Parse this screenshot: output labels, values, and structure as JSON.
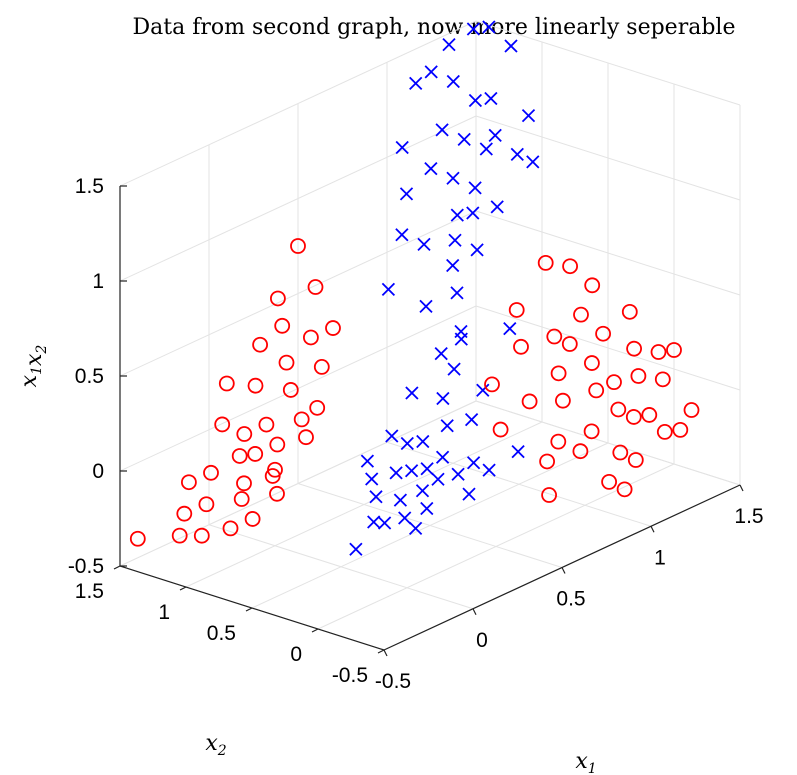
{
  "chart_data": {
    "type": "scatter",
    "title": "Data from second graph, now more linearly seperable",
    "xlabel": {
      "base": "x",
      "sub": "1"
    },
    "ylabel": {
      "base": "x",
      "sub": "2"
    },
    "zlabel": {
      "base": "x",
      "sub": "1",
      "base2": "x",
      "sub2": "2"
    },
    "xlim": [
      -0.5,
      1.5
    ],
    "ylim": [
      -0.5,
      1.5
    ],
    "zlim": [
      -0.5,
      1.5
    ],
    "x_ticks": [
      "-0.5",
      "0",
      "0.5",
      "1",
      "1.5"
    ],
    "y_ticks": [
      "-0.5",
      "0",
      "0.5",
      "1",
      "1.5"
    ],
    "z_ticks": [
      "-0.5",
      "0",
      "0.5",
      "1",
      "1.5"
    ],
    "grid": true,
    "series": [
      {
        "marker": "x",
        "color": "#0000ff",
        "points": [
          [
            1.05,
            0.9,
            0.95
          ],
          [
            1.2,
            0.95,
            1.15
          ],
          [
            0.95,
            1.1,
            1.05
          ],
          [
            1.15,
            1.2,
            1.4
          ],
          [
            0.9,
            0.85,
            0.75
          ],
          [
            1.25,
            1.05,
            1.3
          ],
          [
            1.1,
            0.8,
            0.85
          ],
          [
            0.85,
            1.15,
            0.95
          ],
          [
            1.3,
            1.25,
            1.6
          ],
          [
            1.0,
            1.0,
            1.0
          ],
          [
            0.8,
            0.95,
            0.75
          ],
          [
            1.2,
            1.1,
            1.3
          ],
          [
            0.95,
            0.75,
            0.7
          ],
          [
            1.1,
            1.3,
            1.45
          ],
          [
            1.35,
            0.9,
            1.2
          ],
          [
            0.9,
            1.25,
            1.15
          ],
          [
            1.05,
            1.15,
            1.2
          ],
          [
            1.25,
            0.85,
            1.05
          ],
          [
            0.75,
            1.05,
            0.8
          ],
          [
            1.15,
            0.95,
            1.1
          ],
          [
            1.4,
            1.1,
            1.5
          ],
          [
            1.0,
            0.85,
            0.85
          ],
          [
            0.85,
            0.8,
            0.65
          ],
          [
            1.3,
            0.8,
            1.0
          ],
          [
            0.6,
            0.95,
            0.6
          ],
          [
            1.1,
            1.05,
            1.15
          ],
          [
            0.95,
            0.9,
            0.85
          ],
          [
            1.2,
            1.3,
            1.55
          ],
          [
            0.8,
            0.7,
            0.55
          ],
          [
            1.35,
            1.2,
            1.6
          ],
          [
            0.7,
            0.8,
            0.5
          ],
          [
            1.05,
            1.35,
            1.4
          ],
          [
            0.6,
            0.55,
            0.35
          ],
          [
            0.75,
            0.6,
            0.35
          ],
          [
            0.0,
            0.05,
            -0.05
          ],
          [
            0.1,
            -0.1,
            0.05
          ],
          [
            -0.1,
            0.1,
            0.0
          ],
          [
            0.05,
            0.15,
            0.05
          ],
          [
            0.2,
            0.0,
            0.1
          ],
          [
            -0.05,
            -0.05,
            -0.1
          ],
          [
            0.15,
            0.2,
            0.15
          ],
          [
            0.25,
            -0.05,
            0.0
          ],
          [
            0.0,
            -0.15,
            -0.05
          ],
          [
            0.3,
            0.1,
            0.2
          ],
          [
            -0.15,
            0.05,
            -0.1
          ],
          [
            0.1,
            0.25,
            0.2
          ],
          [
            0.35,
            0.2,
            0.3
          ],
          [
            0.2,
            -0.2,
            -0.05
          ],
          [
            -0.2,
            -0.1,
            -0.05
          ],
          [
            0.05,
            -0.05,
            0.0
          ],
          [
            0.4,
            0.05,
            0.2
          ],
          [
            0.15,
            0.05,
            0.05
          ],
          [
            -0.1,
            -0.2,
            -0.1
          ],
          [
            0.3,
            -0.1,
            0.05
          ],
          [
            0.45,
            0.25,
            0.4
          ],
          [
            0.1,
            0.1,
            0.05
          ],
          [
            0.25,
            0.3,
            0.35
          ],
          [
            -0.05,
            0.2,
            0.05
          ],
          [
            0.5,
            0.1,
            0.3
          ],
          [
            0.2,
            0.15,
            0.15
          ],
          [
            0.0,
            0.3,
            0.1
          ],
          [
            0.35,
            -0.15,
            0.0
          ],
          [
            0.6,
            0.4,
            0.5
          ],
          [
            0.55,
            -0.1,
            0.0
          ],
          [
            0.8,
            0.3,
            0.45
          ],
          [
            -0.25,
            0.05,
            -0.2
          ]
        ]
      },
      {
        "marker": "o",
        "color": "#ff0000",
        "points": [
          [
            1.0,
            -0.05,
            -0.1
          ],
          [
            1.1,
            0.05,
            0.05
          ],
          [
            1.2,
            -0.1,
            -0.1
          ],
          [
            0.95,
            0.1,
            0.05
          ],
          [
            1.3,
            0.0,
            0.05
          ],
          [
            1.05,
            -0.2,
            -0.2
          ],
          [
            1.15,
            0.15,
            0.15
          ],
          [
            1.25,
            -0.15,
            -0.1
          ],
          [
            0.9,
            -0.1,
            -0.15
          ],
          [
            1.35,
            0.1,
            0.15
          ],
          [
            1.0,
            0.2,
            0.15
          ],
          [
            1.2,
            0.05,
            0.05
          ],
          [
            1.1,
            -0.25,
            -0.25
          ],
          [
            1.3,
            -0.2,
            -0.2
          ],
          [
            0.85,
            0.0,
            -0.1
          ],
          [
            1.4,
            -0.05,
            0.0
          ],
          [
            1.05,
            0.3,
            0.3
          ],
          [
            1.15,
            -0.05,
            -0.05
          ],
          [
            0.95,
            -0.25,
            -0.3
          ],
          [
            1.25,
            0.2,
            0.25
          ],
          [
            1.45,
            0.05,
            0.1
          ],
          [
            0.8,
            0.15,
            0.1
          ],
          [
            1.2,
            0.3,
            0.35
          ],
          [
            1.0,
            -0.3,
            -0.35
          ],
          [
            1.35,
            -0.25,
            -0.2
          ],
          [
            0.9,
            0.35,
            0.3
          ],
          [
            1.1,
            0.25,
            0.25
          ],
          [
            1.4,
            0.2,
            0.3
          ],
          [
            0.75,
            -0.05,
            -0.15
          ],
          [
            1.3,
            0.35,
            0.45
          ],
          [
            0.7,
            0.3,
            0.2
          ],
          [
            1.25,
            0.45,
            0.55
          ],
          [
            0.6,
            0.1,
            0.05
          ],
          [
            1.15,
            0.5,
            0.6
          ],
          [
            0.95,
            0.45,
            0.45
          ],
          [
            1.5,
            0.0,
            0.1
          ],
          [
            0.65,
            -0.2,
            -0.25
          ],
          [
            1.45,
            -0.2,
            -0.15
          ],
          [
            0.0,
            1.0,
            -0.1
          ],
          [
            -0.1,
            1.1,
            -0.15
          ],
          [
            0.1,
            1.2,
            0.05
          ],
          [
            -0.05,
            0.95,
            -0.1
          ],
          [
            0.05,
            1.3,
            0.0
          ],
          [
            -0.15,
            1.05,
            -0.2
          ],
          [
            0.15,
            1.0,
            0.1
          ],
          [
            -0.2,
            1.25,
            -0.25
          ],
          [
            0.0,
            1.15,
            -0.05
          ],
          [
            0.2,
            1.15,
            0.2
          ],
          [
            -0.1,
            1.35,
            -0.15
          ],
          [
            0.1,
            0.9,
            0.05
          ],
          [
            -0.25,
            1.0,
            -0.3
          ],
          [
            0.25,
            1.25,
            0.3
          ],
          [
            -0.05,
            1.2,
            -0.05
          ],
          [
            0.05,
            1.05,
            0.0
          ],
          [
            0.3,
            1.05,
            0.3
          ],
          [
            -0.3,
            1.15,
            -0.35
          ],
          [
            0.15,
            1.35,
            0.2
          ],
          [
            -0.15,
            1.45,
            -0.2
          ],
          [
            0.2,
            0.95,
            0.15
          ],
          [
            -0.2,
            0.9,
            -0.25
          ],
          [
            0.35,
            1.2,
            0.4
          ],
          [
            0.0,
            1.4,
            0.05
          ],
          [
            0.25,
            1.45,
            0.35
          ],
          [
            -0.25,
            1.35,
            -0.3
          ],
          [
            0.4,
            1.1,
            0.45
          ],
          [
            0.1,
            1.5,
            0.2
          ],
          [
            0.3,
            1.35,
            0.45
          ],
          [
            -0.1,
            0.85,
            -0.15
          ],
          [
            0.45,
            1.3,
            0.6
          ],
          [
            0.35,
            1.45,
            0.55
          ],
          [
            -0.35,
            1.25,
            -0.35
          ],
          [
            0.5,
            1.5,
            0.75
          ],
          [
            -0.4,
            1.5,
            -0.4
          ]
        ]
      }
    ]
  }
}
